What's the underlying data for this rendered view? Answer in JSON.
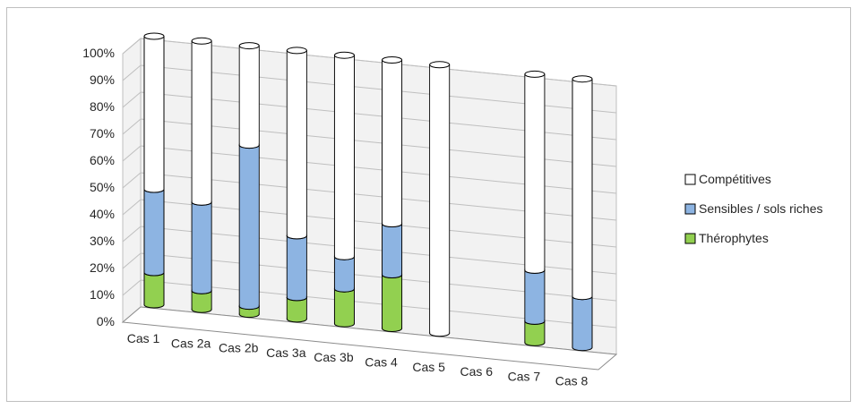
{
  "chart_data": {
    "type": "bar",
    "stacked": true,
    "percent_stacked": true,
    "three_d": true,
    "title": "",
    "xlabel": "",
    "ylabel": "",
    "ylim": [
      0,
      100
    ],
    "y_tick_labels": [
      "0%",
      "10%",
      "20%",
      "30%",
      "40%",
      "50%",
      "60%",
      "70%",
      "80%",
      "90%",
      "100%"
    ],
    "categories": [
      "Cas 1",
      "Cas 2a",
      "Cas 2b",
      "Cas 3a",
      "Cas 3b",
      "Cas 4",
      "Cas 5",
      "Cas 6",
      "Cas 7",
      "Cas 8"
    ],
    "series": [
      {
        "name": "Thérophytes",
        "color": "#92d050",
        "values": [
          12,
          7,
          3,
          8,
          13,
          20,
          0,
          0,
          8,
          0
        ]
      },
      {
        "name": "Sensibles / sols riches",
        "color": "#8db4e2",
        "values": [
          31,
          33,
          60,
          23,
          12,
          19,
          0,
          0,
          19,
          19
        ]
      },
      {
        "name": "Compétitives",
        "color": "#ffffff",
        "values": [
          57,
          60,
          37,
          69,
          75,
          61,
          100,
          0,
          73,
          81
        ]
      }
    ],
    "grid": true,
    "legend_position": "right",
    "legend_order": [
      "Compétitives",
      "Sensibles / sols riches",
      "Thérophytes"
    ]
  }
}
